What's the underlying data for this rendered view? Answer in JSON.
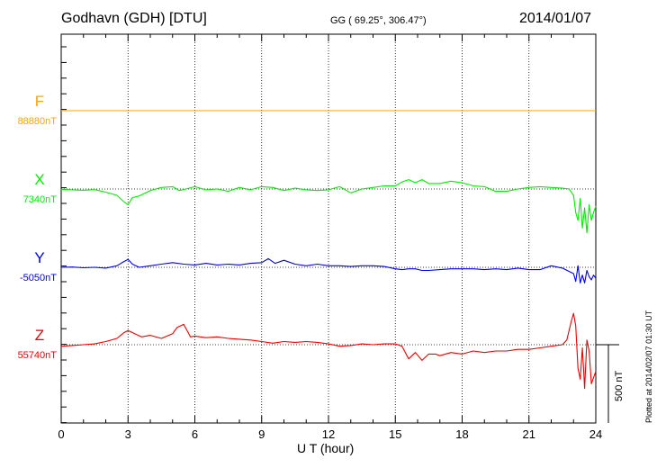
{
  "header": {
    "station": "Godhavn (GDH)  [DTU]",
    "coords": "GG ( 69.25°, 306.47°)",
    "date": "2014/01/07"
  },
  "footer": {
    "plotted": "Plotted at 2014/02/07 01:30 UT"
  },
  "chart_data": {
    "type": "line",
    "title": "Godhavn (GDH)  [DTU]",
    "xlabel": "U T (hour)",
    "ylabel": "",
    "xlim": [
      0,
      24
    ],
    "xticks": [
      0,
      3,
      6,
      9,
      12,
      15,
      18,
      21,
      24
    ],
    "xtick_labels": [
      "0",
      "3",
      "6",
      "9",
      "12",
      "15",
      "18",
      "21",
      "24"
    ],
    "grid": "vertical dotted every 3 h, dotted baseline per component",
    "scale_bar": {
      "label": "500 nT",
      "value_nT": 500
    },
    "series": [
      {
        "name": "F",
        "baseline_label": "88880nT",
        "color": "#ffa500",
        "x": [
          0,
          24
        ],
        "values": [
          0,
          0
        ]
      },
      {
        "name": "X",
        "baseline_label": "7340nT",
        "color": "#00ee00",
        "x": [
          0,
          0.5,
          1,
          1.5,
          2,
          2.5,
          2.8,
          3,
          3.2,
          3.5,
          4,
          4.5,
          5,
          5.3,
          5.6,
          6,
          6.5,
          7,
          7.5,
          8,
          8.5,
          9,
          9.5,
          10,
          10.5,
          11,
          11.5,
          12,
          12.5,
          13,
          13.5,
          14,
          14.5,
          15,
          15.3,
          15.6,
          15.9,
          16.2,
          16.5,
          17,
          17.5,
          18,
          18.5,
          19,
          19.5,
          20,
          20.5,
          21,
          21.5,
          22,
          22.5,
          22.8,
          23,
          23.1,
          23.2,
          23.3,
          23.4,
          23.5,
          23.6,
          23.7,
          23.8,
          23.9,
          24
        ],
        "values": [
          -2,
          -5,
          -8,
          -4,
          -20,
          -40,
          -80,
          -100,
          -55,
          -45,
          -10,
          10,
          15,
          -10,
          0,
          15,
          -5,
          0,
          -15,
          10,
          -5,
          15,
          10,
          -10,
          5,
          -5,
          -10,
          -5,
          15,
          -25,
          0,
          10,
          20,
          20,
          45,
          60,
          40,
          60,
          35,
          35,
          50,
          40,
          20,
          15,
          -15,
          -15,
          0,
          10,
          15,
          10,
          5,
          0,
          -40,
          -150,
          -200,
          -60,
          -250,
          -120,
          -280,
          -100,
          -200,
          -150,
          -110
        ]
      },
      {
        "name": "Y",
        "baseline_label": "-5050nT",
        "color": "#0000ee",
        "x": [
          0,
          0.5,
          1,
          1.5,
          2,
          2.5,
          2.8,
          3,
          3.2,
          3.5,
          4,
          4.5,
          5,
          5.5,
          6,
          6.5,
          7,
          7.5,
          8,
          8.5,
          9,
          9.3,
          9.6,
          10,
          10.5,
          11,
          11.5,
          12,
          12.5,
          13,
          13.5,
          14,
          14.5,
          15,
          15.3,
          15.6,
          15.9,
          16.2,
          16.5,
          17,
          17.5,
          18,
          18.5,
          19,
          19.5,
          20,
          20.5,
          21,
          21.5,
          22,
          22.5,
          23,
          23.1,
          23.2,
          23.3,
          23.4,
          23.5,
          23.6,
          23.7,
          23.8,
          23.9,
          24
        ],
        "values": [
          0,
          2,
          -3,
          0,
          -5,
          10,
          35,
          50,
          20,
          0,
          10,
          20,
          30,
          20,
          15,
          25,
          15,
          20,
          15,
          25,
          30,
          55,
          25,
          45,
          20,
          10,
          20,
          10,
          10,
          5,
          10,
          10,
          5,
          -10,
          -15,
          -10,
          -10,
          -20,
          -20,
          -15,
          -10,
          -10,
          -10,
          -15,
          -10,
          -15,
          -5,
          -15,
          -15,
          10,
          -5,
          -40,
          -90,
          10,
          -100,
          -50,
          -100,
          -20,
          -60,
          -80,
          -50,
          -70
        ]
      },
      {
        "name": "Z",
        "baseline_label": "55740nT",
        "color": "#ee0000",
        "x": [
          0,
          0.5,
          1,
          1.5,
          2,
          2.5,
          2.8,
          3,
          3.3,
          3.6,
          4,
          4.5,
          5,
          5.2,
          5.5,
          5.8,
          6,
          6.5,
          7,
          7.5,
          8,
          8.5,
          9,
          9.5,
          10,
          10.5,
          11,
          11.5,
          12,
          12.5,
          13,
          13.5,
          14,
          14.5,
          15,
          15.3,
          15.6,
          15.9,
          16.2,
          16.5,
          16.8,
          17,
          17.5,
          18,
          18.5,
          19,
          19.5,
          20,
          20.5,
          21,
          21.5,
          22,
          22.5,
          22.7,
          22.9,
          23,
          23.1,
          23.2,
          23.3,
          23.4,
          23.5,
          23.6,
          23.7,
          23.8,
          24
        ],
        "values": [
          -10,
          -5,
          0,
          5,
          20,
          40,
          75,
          90,
          70,
          50,
          60,
          40,
          70,
          110,
          130,
          50,
          55,
          45,
          50,
          40,
          35,
          30,
          20,
          10,
          20,
          15,
          20,
          15,
          5,
          -10,
          -5,
          5,
          0,
          5,
          5,
          -10,
          -90,
          -50,
          -100,
          -60,
          -60,
          -70,
          -50,
          -60,
          -40,
          -50,
          -40,
          -40,
          -30,
          -30,
          -20,
          -10,
          0,
          30,
          150,
          200,
          120,
          -150,
          -220,
          -20,
          -280,
          30,
          -40,
          -250,
          -170
        ]
      }
    ]
  }
}
